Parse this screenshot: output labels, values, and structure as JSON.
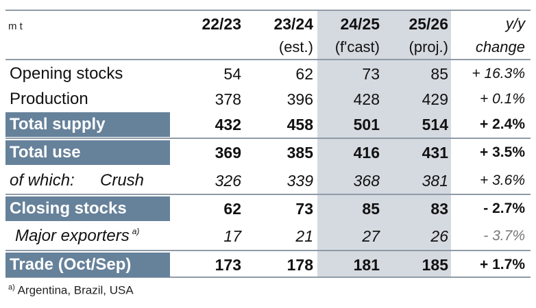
{
  "table": {
    "unit": "m t",
    "columns": [
      {
        "top": "22/23",
        "bottom": ""
      },
      {
        "top": "23/24",
        "bottom": "(est.)"
      },
      {
        "top": "24/25",
        "bottom": "(f'cast)"
      },
      {
        "top": "25/26",
        "bottom": "(proj.)"
      },
      {
        "top": "y/y",
        "bottom": "change"
      }
    ],
    "rows": [
      {
        "label": "Opening stocks",
        "v1": "54",
        "v2": "62",
        "v3": "73",
        "v4": "85",
        "chg": "+ 16.3%"
      },
      {
        "label": "Production",
        "v1": "378",
        "v2": "396",
        "v3": "428",
        "v4": "429",
        "chg": "+ 0.1%"
      },
      {
        "label": "Total supply",
        "v1": "432",
        "v2": "458",
        "v3": "501",
        "v4": "514",
        "chg": "+ 2.4%"
      },
      {
        "label": "Total use",
        "v1": "369",
        "v2": "385",
        "v3": "416",
        "v4": "431",
        "chg": "+ 3.5%"
      },
      {
        "label": "of which:",
        "label2": "Crush",
        "v1": "326",
        "v2": "339",
        "v3": "368",
        "v4": "381",
        "chg": "+ 3.6%"
      },
      {
        "label": "Closing stocks",
        "v1": "62",
        "v2": "73",
        "v3": "85",
        "v4": "83",
        "chg": "- 2.7%"
      },
      {
        "label": "Major exporters",
        "sup": "a)",
        "v1": "17",
        "v2": "21",
        "v3": "27",
        "v4": "26",
        "chg": "- 3.7%"
      },
      {
        "label": "Trade (Oct/Sep)",
        "v1": "173",
        "v2": "178",
        "v3": "181",
        "v4": "185",
        "chg": "+ 1.7%"
      }
    ],
    "footnote": {
      "marker": "a)",
      "text": "Argentina, Brazil, USA"
    }
  },
  "colors": {
    "band": "#66819a",
    "shade": "#d5d9e0",
    "rule": "#8f9aa6"
  }
}
